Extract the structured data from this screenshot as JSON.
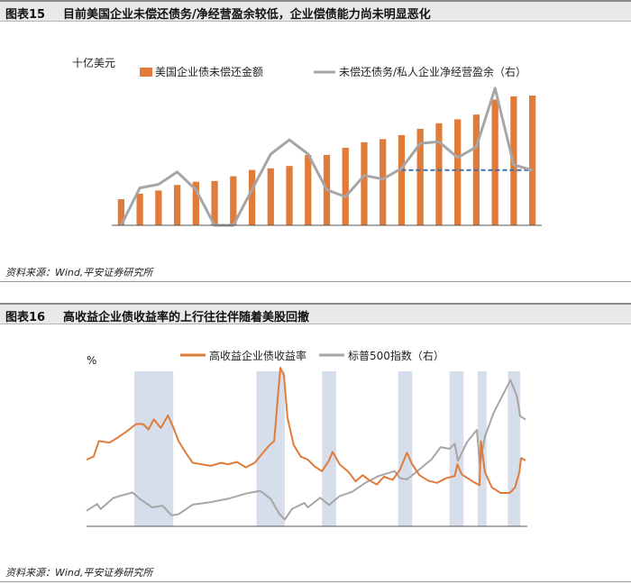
{
  "figure1": {
    "id": "图表15",
    "title": "目前美国企业未偿还债务/净经营盈余较低，企业偿债能力尚未明显恶化",
    "source": "资料来源：Wind,平安证券研究所",
    "chart_data": {
      "type": "bar+line",
      "unit_left": "十亿美元",
      "x_ticks": [
        "00",
        "03",
        "06",
        "09",
        "12",
        "15",
        "18",
        "21"
      ],
      "y_left_ticks": [
        "2,000",
        "3,000",
        "4,000",
        "5,000",
        "6,000",
        "7,000",
        "8,000",
        "9,000",
        "10,000",
        "11,000"
      ],
      "y_left_range": [
        2000,
        11000
      ],
      "y_right_ticks": [
        "1.5",
        "1.6",
        "1.7",
        "1.8",
        "1.9"
      ],
      "y_right_range": [
        1.5,
        1.9
      ],
      "years": [
        2000,
        2001,
        2002,
        2003,
        2004,
        2005,
        2006,
        2007,
        2008,
        2009,
        2010,
        2011,
        2012,
        2013,
        2014,
        2015,
        2016,
        2017,
        2018,
        2019,
        2020,
        2021,
        2022
      ],
      "series": [
        {
          "name": "美国企业债未偿还金额",
          "type": "bar",
          "axis": "left",
          "color": "#e07b39",
          "values": [
            3650,
            4000,
            4200,
            4550,
            4750,
            4800,
            5100,
            5500,
            5600,
            5750,
            6450,
            6450,
            6900,
            7250,
            7450,
            7700,
            8100,
            8450,
            8700,
            9000,
            9950,
            10150,
            10200
          ]
        },
        {
          "name": "未偿还债务/私人企业净经营盈余（右）",
          "type": "line",
          "axis": "right",
          "color": "#a6a6a6",
          "values": [
            1.43,
            1.605,
            1.615,
            1.65,
            1.6,
            1.42,
            1.42,
            1.6,
            1.7,
            1.74,
            1.7,
            1.6,
            1.58,
            1.64,
            1.63,
            1.66,
            1.73,
            1.735,
            1.69,
            1.72,
            1.885,
            1.67,
            1.655
          ]
        }
      ],
      "reference_line": {
        "axis": "right",
        "value": 1.655,
        "from_year": 2015,
        "to_year": 2022,
        "color": "#3d6fb6",
        "style": "dashed"
      }
    }
  },
  "figure2": {
    "id": "图表16",
    "title": "高收益企业债收益率的上行往往伴随着美股回撤",
    "source": "资料来源：Wind,平安证券研究所",
    "chart_data": {
      "type": "line",
      "unit_left": "%",
      "x_ticks": [
        "98",
        "00",
        "02",
        "04",
        "06",
        "08",
        "10",
        "12",
        "14",
        "16",
        "18",
        "20",
        "22"
      ],
      "x_range": [
        1998.0,
        2022.9
      ],
      "y_left_ticks": [
        "0",
        "2",
        "4",
        "6",
        "8",
        "10",
        "12",
        "14",
        "16",
        "18",
        "20"
      ],
      "y_left_range": [
        0,
        20
      ],
      "y_right_ticks": [
        "500",
        "1,000",
        "1,500",
        "2,000",
        "2,500",
        "3,000",
        "3,500",
        "4,000",
        "4,500",
        "5,000"
      ],
      "y_right_range": [
        500,
        5000
      ],
      "shaded_periods": [
        [
          2000.7,
          2002.9
        ],
        [
          2007.6,
          2009.2
        ],
        [
          2011.3,
          2012.1
        ],
        [
          2015.6,
          2016.4
        ],
        [
          2018.5,
          2019.3
        ],
        [
          2020.1,
          2020.6
        ],
        [
          2021.8,
          2022.5
        ]
      ],
      "shade_color": "#d6deeb",
      "series": [
        {
          "name": "高收益企业债收益率",
          "axis": "left",
          "color": "#e07b39",
          "points": [
            [
              1998.0,
              8.6
            ],
            [
              1998.4,
              9.0
            ],
            [
              1998.7,
              11.0
            ],
            [
              1999.3,
              10.8
            ],
            [
              1999.8,
              11.5
            ],
            [
              2000.3,
              12.3
            ],
            [
              2000.8,
              13.2
            ],
            [
              2001.2,
              13.2
            ],
            [
              2001.5,
              12.5
            ],
            [
              2001.8,
              13.8
            ],
            [
              2002.2,
              12.7
            ],
            [
              2002.6,
              14.3
            ],
            [
              2002.9,
              12.8
            ],
            [
              2003.2,
              11.0
            ],
            [
              2003.6,
              9.5
            ],
            [
              2004.0,
              8.2
            ],
            [
              2004.5,
              8.0
            ],
            [
              2005.0,
              7.8
            ],
            [
              2005.6,
              8.2
            ],
            [
              2006.0,
              8.0
            ],
            [
              2006.5,
              8.3
            ],
            [
              2007.0,
              7.6
            ],
            [
              2007.5,
              8.2
            ],
            [
              2007.9,
              9.3
            ],
            [
              2008.3,
              10.4
            ],
            [
              2008.6,
              11.0
            ],
            [
              2008.8,
              16.5
            ],
            [
              2008.95,
              20.5
            ],
            [
              2009.15,
              19.5
            ],
            [
              2009.35,
              14.0
            ],
            [
              2009.7,
              10.5
            ],
            [
              2010.1,
              9.0
            ],
            [
              2010.5,
              8.6
            ],
            [
              2010.9,
              7.7
            ],
            [
              2011.3,
              7.1
            ],
            [
              2011.7,
              8.5
            ],
            [
              2011.9,
              9.6
            ],
            [
              2012.3,
              8.0
            ],
            [
              2012.8,
              7.0
            ],
            [
              2013.2,
              5.8
            ],
            [
              2013.6,
              6.6
            ],
            [
              2014.0,
              5.9
            ],
            [
              2014.4,
              5.4
            ],
            [
              2014.8,
              6.4
            ],
            [
              2015.3,
              6.0
            ],
            [
              2015.7,
              7.3
            ],
            [
              2016.1,
              9.5
            ],
            [
              2016.4,
              8.0
            ],
            [
              2016.8,
              6.6
            ],
            [
              2017.3,
              5.9
            ],
            [
              2017.8,
              5.6
            ],
            [
              2018.3,
              6.2
            ],
            [
              2018.8,
              6.5
            ],
            [
              2018.95,
              8.0
            ],
            [
              2019.2,
              6.7
            ],
            [
              2019.8,
              5.8
            ],
            [
              2020.2,
              5.3
            ],
            [
              2020.28,
              11.0
            ],
            [
              2020.5,
              7.0
            ],
            [
              2020.9,
              5.0
            ],
            [
              2021.4,
              4.3
            ],
            [
              2021.9,
              4.3
            ],
            [
              2022.2,
              5.0
            ],
            [
              2022.45,
              7.0
            ],
            [
              2022.55,
              8.8
            ],
            [
              2022.8,
              8.5
            ]
          ]
        },
        {
          "name": "标普500指数（右）",
          "axis": "right",
          "color": "#a6a6a6",
          "points": [
            [
              1998.0,
              950
            ],
            [
              1998.6,
              1150
            ],
            [
              1998.8,
              1000
            ],
            [
              1999.5,
              1320
            ],
            [
              2000.0,
              1400
            ],
            [
              2000.6,
              1480
            ],
            [
              2001.0,
              1300
            ],
            [
              2001.7,
              1050
            ],
            [
              2002.3,
              1100
            ],
            [
              2002.8,
              820
            ],
            [
              2003.2,
              850
            ],
            [
              2004.0,
              1130
            ],
            [
              2005.0,
              1200
            ],
            [
              2006.0,
              1300
            ],
            [
              2007.0,
              1450
            ],
            [
              2007.8,
              1530
            ],
            [
              2008.4,
              1300
            ],
            [
              2008.9,
              850
            ],
            [
              2009.2,
              700
            ],
            [
              2009.6,
              1000
            ],
            [
              2010.3,
              1180
            ],
            [
              2010.5,
              1050
            ],
            [
              2011.2,
              1330
            ],
            [
              2011.7,
              1120
            ],
            [
              2012.3,
              1380
            ],
            [
              2013.0,
              1500
            ],
            [
              2013.8,
              1780
            ],
            [
              2014.5,
              1960
            ],
            [
              2015.4,
              2100
            ],
            [
              2015.7,
              1900
            ],
            [
              2016.1,
              1860
            ],
            [
              2016.8,
              2150
            ],
            [
              2017.5,
              2450
            ],
            [
              2018.0,
              2800
            ],
            [
              2018.5,
              2750
            ],
            [
              2018.8,
              2900
            ],
            [
              2018.98,
              2400
            ],
            [
              2019.5,
              2950
            ],
            [
              2020.05,
              3300
            ],
            [
              2020.22,
              2300
            ],
            [
              2020.5,
              3100
            ],
            [
              2021.0,
              3800
            ],
            [
              2021.5,
              4300
            ],
            [
              2021.95,
              4750
            ],
            [
              2022.3,
              4300
            ],
            [
              2022.5,
              3700
            ],
            [
              2022.8,
              3600
            ]
          ]
        }
      ]
    }
  }
}
